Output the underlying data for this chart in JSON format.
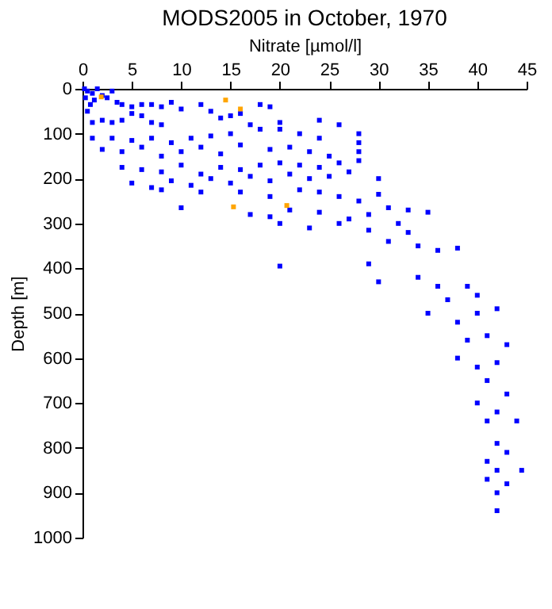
{
  "chart_data": {
    "type": "scatter",
    "title": "MODS2005 in October, 1970",
    "xlabel": "Nitrate [µmol/l]",
    "ylabel": "Depth [m]",
    "xlim": [
      0,
      45
    ],
    "xticks": [
      0,
      5,
      10,
      15,
      20,
      25,
      30,
      35,
      40,
      45
    ],
    "ylim": [
      1000,
      0
    ],
    "yticks": [
      0,
      100,
      200,
      300,
      400,
      500,
      600,
      700,
      800,
      900,
      1000
    ],
    "grid": false,
    "legend": false,
    "marker": "square",
    "series": [
      {
        "color": "#0000ff",
        "x": [
          0.2,
          0.5,
          1,
          1.5,
          0.3,
          1.2,
          2,
          0.8,
          0.5,
          2.5,
          3,
          3.5,
          4,
          5,
          6,
          7,
          8,
          9,
          10,
          12,
          13,
          14,
          15,
          16,
          18,
          19,
          17,
          20,
          24,
          26,
          28,
          1,
          2,
          3,
          4,
          5,
          6,
          7,
          8,
          1,
          3,
          5,
          7,
          9,
          11,
          13,
          15,
          18,
          20,
          22,
          24,
          28,
          2,
          4,
          6,
          8,
          10,
          12,
          14,
          16,
          19,
          21,
          23,
          25,
          28,
          4,
          6,
          8,
          10,
          12,
          14,
          16,
          18,
          20,
          22,
          24,
          26,
          28,
          5,
          7,
          9,
          11,
          13,
          15,
          17,
          19,
          21,
          23,
          25,
          27,
          30,
          8,
          12,
          16,
          19,
          22,
          24,
          26,
          28,
          30,
          10,
          17,
          19,
          21,
          24,
          27,
          29,
          31,
          33,
          35,
          20,
          23,
          26,
          29,
          32,
          33,
          31,
          34,
          36,
          38,
          20,
          29,
          30,
          34,
          36,
          37,
          39,
          40,
          35,
          38,
          40,
          42,
          39,
          41,
          43,
          38,
          40,
          42,
          41,
          43,
          40,
          42,
          41,
          44,
          42,
          43,
          41,
          42,
          44.5,
          43,
          42,
          41,
          42
        ],
        "values": [
          0,
          5,
          10,
          0,
          20,
          25,
          15,
          35,
          50,
          20,
          5,
          30,
          35,
          40,
          35,
          35,
          40,
          30,
          45,
          35,
          50,
          65,
          60,
          55,
          35,
          40,
          80,
          75,
          70,
          80,
          100,
          75,
          70,
          75,
          70,
          55,
          60,
          75,
          80,
          110,
          110,
          115,
          110,
          120,
          110,
          105,
          100,
          90,
          90,
          100,
          110,
          120,
          135,
          140,
          130,
          150,
          140,
          130,
          145,
          125,
          135,
          130,
          140,
          150,
          140,
          175,
          180,
          185,
          170,
          190,
          175,
          180,
          170,
          165,
          170,
          175,
          165,
          160,
          210,
          220,
          205,
          215,
          200,
          210,
          195,
          205,
          190,
          200,
          195,
          185,
          200,
          225,
          230,
          230,
          240,
          225,
          230,
          240,
          250,
          235,
          265,
          280,
          285,
          270,
          275,
          290,
          280,
          265,
          270,
          275,
          300,
          310,
          300,
          315,
          300,
          320,
          340,
          350,
          360,
          355,
          395,
          390,
          430,
          420,
          440,
          470,
          440,
          460,
          500,
          520,
          500,
          490,
          560,
          550,
          570,
          600,
          620,
          610,
          650,
          680,
          700,
          720,
          740,
          740,
          790,
          810,
          830,
          850,
          850,
          880,
          900,
          870,
          940
        ]
      },
      {
        "color": "#ffa500",
        "x": [
          1.9,
          14.5,
          16,
          15.3,
          20.7
        ],
        "values": [
          18,
          25,
          45,
          263,
          260
        ]
      }
    ]
  }
}
